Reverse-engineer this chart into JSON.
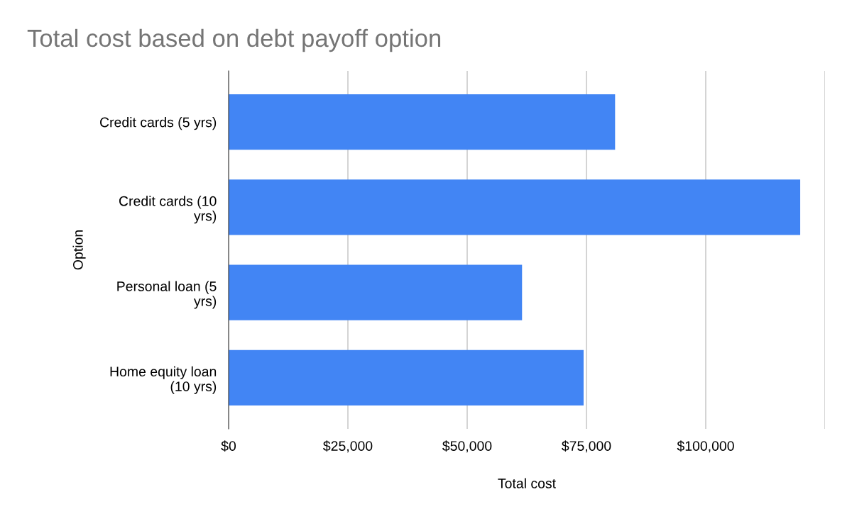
{
  "chart_data": {
    "type": "bar",
    "orientation": "horizontal",
    "title": "Total cost based on debt payoff option",
    "xlabel": "Total cost",
    "ylabel": "Option",
    "categories": [
      "Credit cards (5 yrs)",
      "Credit cards (10\nyrs)",
      "Personal loan (5\nyrs)",
      "Home equity loan\n(10 yrs)"
    ],
    "values": [
      81000,
      119800,
      61500,
      74400
    ],
    "color": "#4285f4",
    "xlim": [
      0,
      125000
    ],
    "xticks": [
      {
        "value": 0,
        "label": "$0"
      },
      {
        "value": 25000,
        "label": "$25,000"
      },
      {
        "value": 50000,
        "label": "$50,000"
      },
      {
        "value": 75000,
        "label": "$75,000"
      },
      {
        "value": 100000,
        "label": "$100,000"
      },
      {
        "value": 125000,
        "label": null
      }
    ],
    "grid": "x",
    "legend": false
  }
}
